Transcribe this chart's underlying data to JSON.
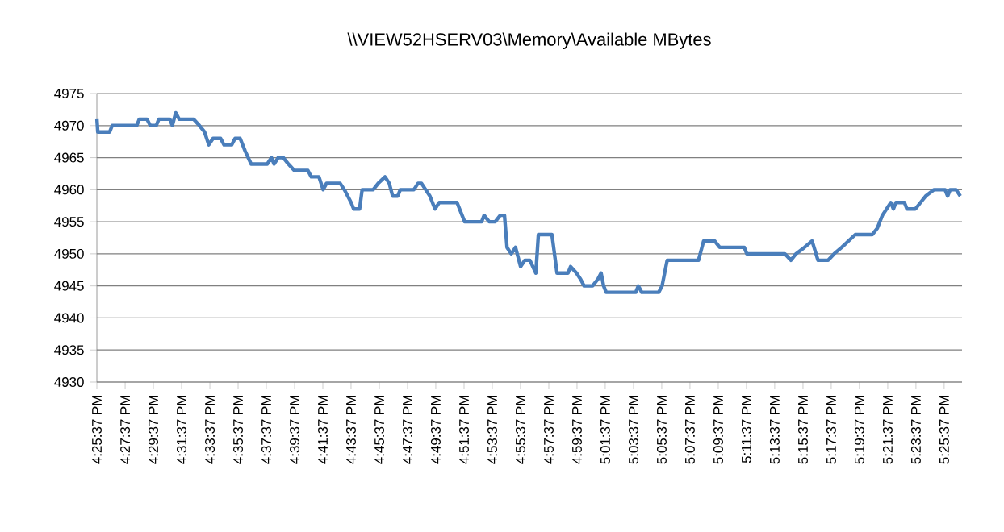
{
  "chart_data": {
    "type": "line",
    "title": "\\\\VIEW52HSERV03\\Memory\\Available MBytes",
    "x": [
      16.427,
      16.428,
      16.442,
      16.445,
      16.474,
      16.477,
      16.486,
      16.49,
      16.497,
      16.5,
      16.513,
      16.516,
      16.52,
      16.524,
      16.541,
      16.548,
      16.554,
      16.559,
      16.564,
      16.573,
      16.577,
      16.586,
      16.59,
      16.596,
      16.602,
      16.609,
      16.628,
      16.633,
      16.636,
      16.641,
      16.647,
      16.653,
      16.66,
      16.676,
      16.68,
      16.689,
      16.694,
      16.698,
      16.714,
      16.719,
      16.727,
      16.73,
      16.737,
      16.74,
      16.753,
      16.759,
      16.767,
      16.772,
      16.776,
      16.782,
      16.785,
      16.801,
      16.806,
      16.81,
      16.815,
      16.82,
      16.826,
      16.831,
      16.852,
      16.861,
      16.881,
      16.884,
      16.89,
      16.897,
      16.903,
      16.908,
      16.911,
      16.916,
      16.921,
      16.927,
      16.932,
      16.938,
      16.945,
      16.948,
      16.964,
      16.97,
      16.983,
      16.986,
      16.993,
      16.998,
      17.002,
      17.012,
      17.018,
      17.022,
      17.025,
      17.028,
      17.063,
      17.066,
      17.07,
      17.09,
      17.094,
      17.1,
      17.137,
      17.143,
      17.156,
      17.162,
      17.191,
      17.194,
      17.239,
      17.246,
      17.252,
      17.262,
      17.271,
      17.278,
      17.29,
      17.297,
      17.306,
      17.322,
      17.342,
      17.348,
      17.354,
      17.364,
      17.367,
      17.37,
      17.38,
      17.383,
      17.393,
      17.399,
      17.405,
      17.415,
      17.428,
      17.431,
      17.434,
      17.441,
      17.446
    ],
    "series": [
      {
        "color": "#4a7ebb",
        "values": [
          4971,
          4969,
          4969,
          4970,
          4970,
          4971,
          4971,
          4970,
          4970,
          4971,
          4971,
          4970,
          4972,
          4971,
          4971,
          4970,
          4969,
          4967,
          4968,
          4968,
          4967,
          4967,
          4968,
          4968,
          4966,
          4964,
          4964,
          4965,
          4964,
          4965,
          4965,
          4964,
          4963,
          4963,
          4962,
          4962,
          4960,
          4961,
          4961,
          4960,
          4958,
          4957,
          4957,
          4960,
          4960,
          4961,
          4962,
          4961,
          4959,
          4959,
          4960,
          4960,
          4961,
          4961,
          4960,
          4959,
          4957,
          4958,
          4958,
          4955,
          4955,
          4956,
          4955,
          4955,
          4956,
          4956,
          4951,
          4950,
          4951,
          4948,
          4949,
          4949,
          4947,
          4953,
          4953,
          4947,
          4947,
          4948,
          4947,
          4946,
          4945,
          4945,
          4946,
          4947,
          4945,
          4944,
          4944,
          4945,
          4944,
          4944,
          4945,
          4949,
          4949,
          4952,
          4952,
          4951,
          4951,
          4950,
          4950,
          4949,
          4950,
          4951,
          4952,
          4949,
          4949,
          4950,
          4951,
          4953,
          4953,
          4954,
          4956,
          4958,
          4957,
          4958,
          4958,
          4957,
          4957,
          4958,
          4959,
          4960,
          4960,
          4959,
          4960,
          4960,
          4959
        ]
      }
    ],
    "xlim": [
      16.4269,
      17.448
    ],
    "xticks": [
      {
        "value": 16.4269,
        "label": "4:25:37 PM"
      },
      {
        "value": 16.4603,
        "label": "4:27:37 PM"
      },
      {
        "value": 16.4936,
        "label": "4:29:37 PM"
      },
      {
        "value": 16.5269,
        "label": "4:31:37 PM"
      },
      {
        "value": 16.5603,
        "label": "4:33:37 PM"
      },
      {
        "value": 16.5936,
        "label": "4:35:37 PM"
      },
      {
        "value": 16.6269,
        "label": "4:37:37 PM"
      },
      {
        "value": 16.6603,
        "label": "4:39:37 PM"
      },
      {
        "value": 16.6936,
        "label": "4:41:37 PM"
      },
      {
        "value": 16.7269,
        "label": "4:43:37 PM"
      },
      {
        "value": 16.7603,
        "label": "4:45:37 PM"
      },
      {
        "value": 16.7936,
        "label": "4:47:37 PM"
      },
      {
        "value": 16.8269,
        "label": "4:49:37 PM"
      },
      {
        "value": 16.8603,
        "label": "4:51:37 PM"
      },
      {
        "value": 16.8936,
        "label": "4:53:37 PM"
      },
      {
        "value": 16.9269,
        "label": "4:55:37 PM"
      },
      {
        "value": 16.9603,
        "label": "4:57:37 PM"
      },
      {
        "value": 16.9936,
        "label": "4:59:37 PM"
      },
      {
        "value": 17.0269,
        "label": "5:01:37 PM"
      },
      {
        "value": 17.0603,
        "label": "5:03:37 PM"
      },
      {
        "value": 17.0936,
        "label": "5:05:37 PM"
      },
      {
        "value": 17.1269,
        "label": "5:07:37 PM"
      },
      {
        "value": 17.1603,
        "label": "5:09:37 PM"
      },
      {
        "value": 17.1936,
        "label": "5:11:37 PM"
      },
      {
        "value": 17.2269,
        "label": "5:13:37 PM"
      },
      {
        "value": 17.2603,
        "label": "5:15:37 PM"
      },
      {
        "value": 17.2936,
        "label": "5:17:37 PM"
      },
      {
        "value": 17.3269,
        "label": "5:19:37 PM"
      },
      {
        "value": 17.3603,
        "label": "5:21:37 PM"
      },
      {
        "value": 17.3936,
        "label": "5:23:37 PM"
      },
      {
        "value": 17.4269,
        "label": "5:25:37 PM"
      }
    ],
    "ylim": [
      4930,
      4975
    ],
    "yticks": [
      4930,
      4935,
      4940,
      4945,
      4950,
      4955,
      4960,
      4965,
      4970,
      4975
    ],
    "grid": "y",
    "legend": false,
    "marker": "none",
    "line_style": "solid"
  }
}
